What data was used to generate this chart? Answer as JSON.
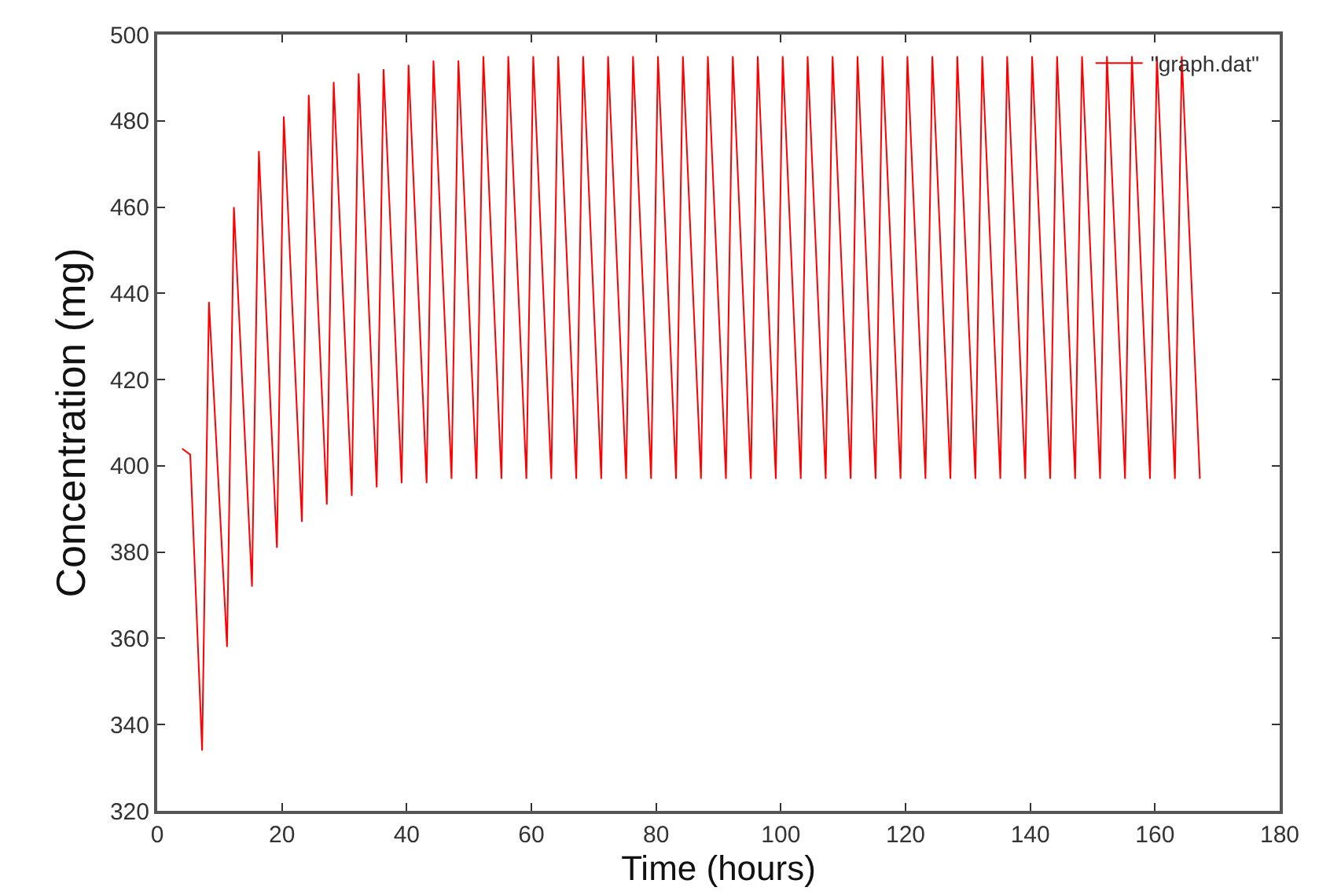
{
  "chart_data": {
    "type": "line",
    "xlabel": "Time (hours)",
    "ylabel": "Concentration (mg)",
    "xlim": [
      0,
      180
    ],
    "ylim": [
      320,
      500
    ],
    "xticks": [
      0,
      20,
      40,
      60,
      80,
      100,
      120,
      140,
      160,
      180
    ],
    "yticks": [
      320,
      340,
      360,
      380,
      400,
      420,
      440,
      460,
      480,
      500
    ],
    "legend": "top right",
    "marker": "none",
    "line_style": "solid",
    "series": [
      {
        "name": "\"graph.dat\"",
        "color": "#ff0000",
        "x": [
          4,
          5.3,
          7.2,
          8.3,
          11.2,
          12.3,
          15.2,
          16.3,
          19.2,
          20.3,
          23.2,
          24.3,
          27.2,
          28.3,
          31.2,
          32.3,
          35.2,
          36.3,
          39.2,
          40.3,
          43.2,
          44.3,
          47.2,
          48.3,
          51.2,
          52.3,
          55.2,
          56.3,
          59.2,
          60.3,
          63.2,
          64.3,
          67.2,
          68.3,
          71.2,
          72.3,
          75.2,
          76.3,
          79.2,
          80.3,
          83.2,
          84.3,
          87.2,
          88.3,
          91.2,
          92.3,
          95.2,
          96.3,
          99.2,
          100.3,
          103.2,
          104.3,
          107.2,
          108.3,
          111.2,
          112.3,
          115.2,
          116.3,
          119.2,
          120.3,
          123.2,
          124.3,
          127.2,
          128.3,
          131.2,
          132.3,
          135.2,
          136.3,
          139.2,
          140.3,
          143.2,
          144.3,
          147.2,
          148.3,
          151.2,
          152.3,
          155.2,
          156.3,
          159.2,
          160.3,
          163.2,
          164.3,
          167.2
        ],
        "values": [
          404,
          402.6,
          334,
          438,
          358,
          460,
          372,
          473,
          381,
          481,
          387,
          486,
          391,
          489,
          393,
          491,
          395,
          492,
          396,
          493,
          396,
          494,
          397,
          494,
          397,
          495,
          397,
          495,
          397,
          495,
          397,
          495,
          397,
          495,
          397,
          495,
          397,
          495,
          397,
          495,
          397,
          495,
          397,
          495,
          397,
          495,
          397,
          495,
          397,
          495,
          397,
          495,
          397,
          495,
          397,
          495,
          397,
          495,
          397,
          495,
          397,
          495,
          397,
          495,
          397,
          495,
          397,
          495,
          397,
          495,
          397,
          495,
          397,
          495,
          397,
          495,
          397,
          495,
          397,
          495,
          397,
          495,
          397
        ]
      }
    ]
  }
}
